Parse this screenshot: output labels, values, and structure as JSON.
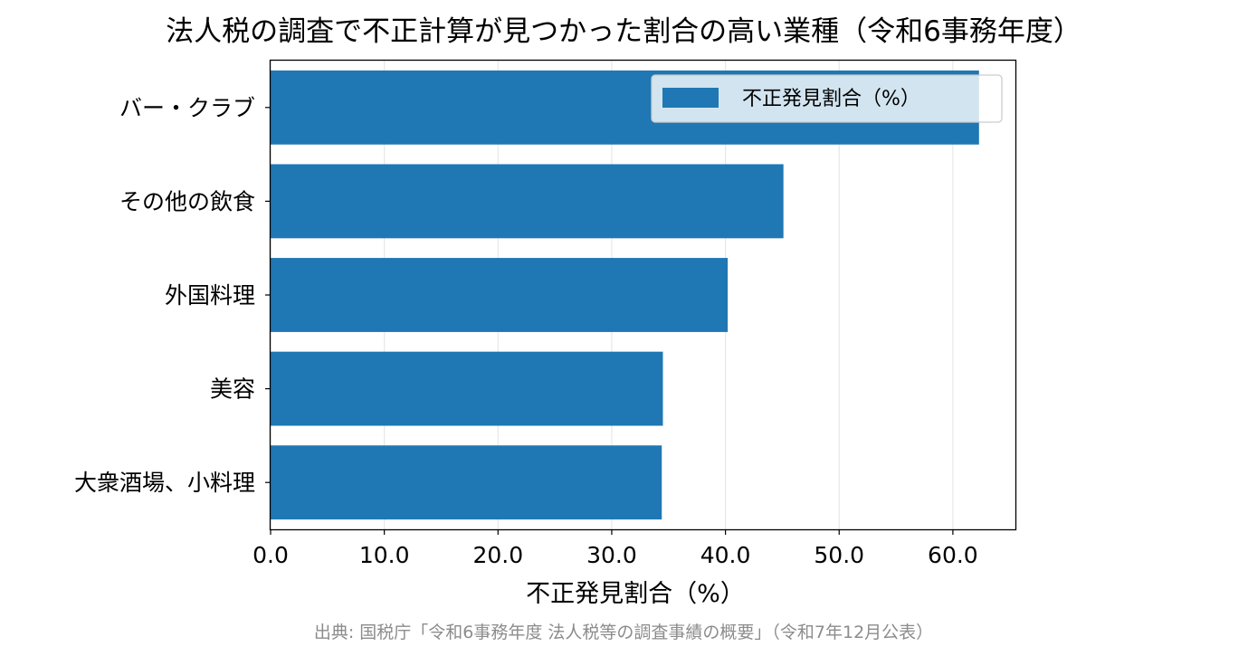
{
  "chart_data": {
    "type": "bar",
    "orientation": "horizontal",
    "title": "法人税の調査で不正計算が見つかった割合の高い業種（令和6事務年度）",
    "xlabel": "不正発見割合（%）",
    "ylabel": "",
    "categories": [
      "バー・クラブ",
      "その他の飲食",
      "外国料理",
      "美容",
      "大衆酒場、小料理"
    ],
    "series": [
      {
        "name": "不正発見割合（%）",
        "values": [
          62.3,
          45.1,
          40.2,
          34.5,
          34.4
        ],
        "color": "#1f77b4"
      }
    ],
    "xlim": [
      0,
      65.5
    ],
    "xticks": [
      "0.0",
      "10.0",
      "20.0",
      "30.0",
      "40.0",
      "50.0",
      "60.0"
    ],
    "grid": "vertical",
    "legend": "top-right"
  },
  "source": "出典: 国税庁「令和6事務年度 法人税等の調査事績の概要」（令和7年12月公表）"
}
